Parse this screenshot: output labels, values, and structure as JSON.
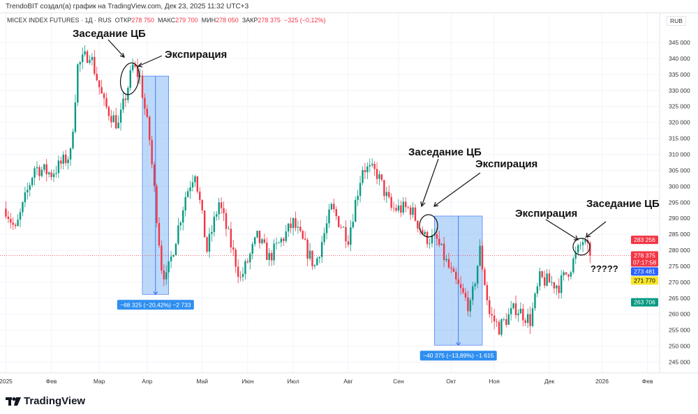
{
  "header": {
    "credit": "TrendoBIT создал(а) график на TradingView.com, Дек 23, 2025 11:32 UTC+3",
    "symbol": "MICEX INDEX FUTURES · 1Д · RUS",
    "open_label": "ОТКР",
    "open": "278 750",
    "high_label": "МАКС",
    "high": "279 700",
    "low_label": "МИН",
    "low": "278 050",
    "close_label": "ЗАКР",
    "close": "278 375",
    "change": "−325 (−0,12%)"
  },
  "currency": "RUB",
  "logo": "TradingView",
  "colors": {
    "up": "#089981",
    "down": "#f23645",
    "range_fill": "#90c0f5",
    "range_line": "#2962ff",
    "label_bg": "#2f8ff0"
  },
  "chart_data": {
    "type": "candlestick",
    "title": "MICEX INDEX FUTURES · 1Д",
    "ylim": [
      243000,
      350000
    ],
    "xlim": [
      0,
      275
    ],
    "y_ticks": [
      "345 000",
      "340 000",
      "335 000",
      "330 000",
      "325 000",
      "320 000",
      "315 000",
      "310 000",
      "305 000",
      "300 000",
      "295 000",
      "290 000",
      "285 000",
      "280 000",
      "275 000",
      "270 000",
      "265 000",
      "260 000",
      "255 000",
      "250 000",
      "245 000"
    ],
    "y_tick_values": [
      345000,
      340000,
      335000,
      330000,
      325000,
      320000,
      315000,
      310000,
      305000,
      300000,
      295000,
      290000,
      285000,
      280000,
      275000,
      270000,
      265000,
      260000,
      255000,
      250000,
      245000
    ],
    "x_ticks": [
      {
        "label": "2025",
        "day": 1
      },
      {
        "label": "Фев",
        "day": 20
      },
      {
        "label": "Мар",
        "day": 40
      },
      {
        "label": "Апр",
        "day": 60
      },
      {
        "label": "Май",
        "day": 83
      },
      {
        "label": "Июн",
        "day": 102
      },
      {
        "label": "Июл",
        "day": 121
      },
      {
        "label": "Авг",
        "day": 144
      },
      {
        "label": "Сен",
        "day": 165
      },
      {
        "label": "Окт",
        "day": 187
      },
      {
        "label": "Ноя",
        "day": 205
      },
      {
        "label": "Дек",
        "day": 228
      },
      {
        "label": "2026",
        "day": 250
      },
      {
        "label": "Фев",
        "day": 269
      }
    ],
    "close_anchors": [
      [
        1,
        293000
      ],
      [
        5,
        286000
      ],
      [
        13,
        306000
      ],
      [
        20,
        304000
      ],
      [
        28,
        310000
      ],
      [
        31,
        337500
      ],
      [
        36,
        342000
      ],
      [
        42,
        325600
      ],
      [
        48,
        319000
      ],
      [
        54,
        337500
      ],
      [
        57,
        334000
      ],
      [
        61,
        314700
      ],
      [
        66,
        275000
      ],
      [
        68,
        271000
      ],
      [
        76,
        297000
      ],
      [
        80,
        305000
      ],
      [
        85,
        280000
      ],
      [
        90,
        295000
      ],
      [
        99,
        271000
      ],
      [
        106,
        284000
      ],
      [
        111,
        277600
      ],
      [
        121,
        288500
      ],
      [
        130,
        275000
      ],
      [
        137,
        293000
      ],
      [
        144,
        284000
      ],
      [
        150,
        306000
      ],
      [
        156,
        304000
      ],
      [
        162,
        293000
      ],
      [
        170,
        293000
      ],
      [
        176,
        284000
      ],
      [
        181,
        283000
      ],
      [
        188,
        271000
      ],
      [
        195,
        262000
      ],
      [
        199,
        280000
      ],
      [
        203,
        260000
      ],
      [
        207,
        255800
      ],
      [
        214,
        262000
      ],
      [
        220,
        258000
      ],
      [
        224,
        271000
      ],
      [
        232,
        269000
      ],
      [
        237,
        275000
      ],
      [
        242,
        283000
      ],
      [
        245,
        278375
      ]
    ],
    "price_tags": [
      {
        "label": "283 256",
        "value": 283256,
        "color": "#f23645"
      },
      {
        "label": "278 375",
        "sub": "07:17:58",
        "value": 278375,
        "color": "#f23645"
      },
      {
        "label": "273 481",
        "value": 273481,
        "color": "#2962ff"
      },
      {
        "label": "271 770",
        "value": 271770,
        "color": "#f7e52d"
      },
      {
        "label": "263 706",
        "value": 263706,
        "color": "#089981"
      }
    ],
    "ranges": [
      {
        "start_day": 58,
        "end_day": 69,
        "from": 334500,
        "to": 266200,
        "label": "−68 325 (−20,42%) −2 733"
      },
      {
        "start_day": 180,
        "end_day": 200,
        "from": 290700,
        "to": 250300,
        "label": "−40 375 (−13,89%) −1 615"
      }
    ],
    "annotations": [
      {
        "id": "cb1",
        "text": "Заседание ЦБ"
      },
      {
        "id": "exp1",
        "text": "Экспирация"
      },
      {
        "id": "cb2",
        "text": "Заседание ЦБ"
      },
      {
        "id": "exp2",
        "text": "Экспирация"
      },
      {
        "id": "exp3",
        "text": "Экспирация"
      },
      {
        "id": "cb3",
        "text": "Заседание ЦБ"
      },
      {
        "id": "q",
        "text": "?????"
      }
    ]
  }
}
